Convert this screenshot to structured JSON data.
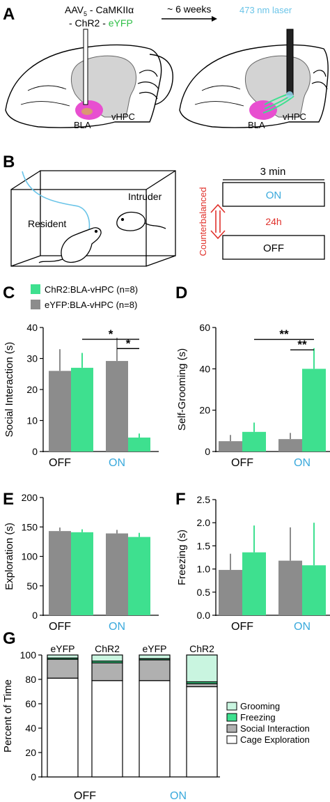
{
  "panel_letters": [
    "A",
    "B",
    "C",
    "D",
    "E",
    "F",
    "G"
  ],
  "colors": {
    "chr2": "#3ee08f",
    "eyfp": "#8c8c8c",
    "laser": "#6ac4e8",
    "on_text": "#3aa9dc",
    "red": "#e0312b",
    "green_text": "#2fbf47",
    "bla_pink": "#e84fd0",
    "brain_gray": "#d3d3d3",
    "grooming": "#c9f5e0",
    "freezing": "#3ee08f",
    "social": "#b0b0b0",
    "cage": "#ffffff"
  },
  "panelA": {
    "virus_line1_pre": "AAV",
    "virus_line1_sub": "5",
    "virus_line1_post": " - CaMKIIα",
    "virus_line2_pre": "- ChR2 - ",
    "virus_line2_green": "eYFP",
    "arrow_label": "~ 6 weeks",
    "laser_label": "473 nm laser",
    "label_bla": "BLA",
    "label_vhpc": "vHPC"
  },
  "panelB": {
    "resident": "Resident",
    "intruder": "Intruder",
    "duration": "3 min",
    "on_label": "ON",
    "off_label": "OFF",
    "counterbalanced": "Counterbalanced",
    "interval": "24h"
  },
  "legend": [
    {
      "name": "ChR2:BLA-vHPC (n=8)",
      "color_key": "chr2"
    },
    {
      "name": "eYFP:BLA-vHPC (n=8)",
      "color_key": "eyfp"
    }
  ],
  "x_categories": [
    "OFF",
    "ON"
  ],
  "chart_data": [
    {
      "panel": "C",
      "type": "bar",
      "ylabel": "Social Interaction (s)",
      "ylim": [
        0,
        40
      ],
      "yticks": [
        0,
        10,
        20,
        30,
        40
      ],
      "categories": [
        "OFF",
        "ON"
      ],
      "series": [
        {
          "name": "eYFP:BLA-vHPC (n=8)",
          "color_key": "eyfp",
          "values": [
            26,
            29.2
          ],
          "errors": [
            7,
            7.5
          ]
        },
        {
          "name": "ChR2:BLA-vHPC (n=8)",
          "color_key": "chr2",
          "values": [
            27,
            4.5
          ],
          "errors": [
            4.8,
            1.3
          ]
        }
      ],
      "significance": [
        {
          "label": "*",
          "y": 36.2,
          "from": [
            0,
            1
          ],
          "to": [
            1,
            1
          ]
        },
        {
          "label": "*",
          "y": 33.2,
          "from": [
            1,
            0
          ],
          "to": [
            1,
            1
          ]
        }
      ]
    },
    {
      "panel": "D",
      "type": "bar",
      "ylabel": "Self-Grooming (s)",
      "ylim": [
        0,
        60
      ],
      "yticks": [
        0,
        20,
        40,
        60
      ],
      "categories": [
        "OFF",
        "ON"
      ],
      "series": [
        {
          "name": "eYFP:BLA-vHPC (n=8)",
          "color_key": "eyfp",
          "values": [
            5,
            6
          ],
          "errors": [
            3,
            3
          ]
        },
        {
          "name": "ChR2:BLA-vHPC (n=8)",
          "color_key": "chr2",
          "values": [
            9.5,
            40
          ],
          "errors": [
            4.5,
            10
          ]
        }
      ],
      "significance": [
        {
          "label": "**",
          "y": 54.2,
          "from": [
            0,
            1
          ],
          "to": [
            1,
            1
          ]
        },
        {
          "label": "**",
          "y": 49.2,
          "from": [
            1,
            0
          ],
          "to": [
            1,
            1
          ]
        }
      ]
    },
    {
      "panel": "E",
      "type": "bar",
      "ylabel": "Exploration (s)",
      "ylim": [
        0,
        200
      ],
      "yticks": [
        0,
        50,
        100,
        150,
        200
      ],
      "categories": [
        "OFF",
        "ON"
      ],
      "series": [
        {
          "name": "eYFP:BLA-vHPC (n=8)",
          "color_key": "eyfp",
          "values": [
            143,
            139
          ],
          "errors": [
            6,
            6
          ]
        },
        {
          "name": "ChR2:BLA-vHPC (n=8)",
          "color_key": "chr2",
          "values": [
            141,
            133
          ],
          "errors": [
            5,
            7
          ]
        }
      ],
      "significance": []
    },
    {
      "panel": "F",
      "type": "bar",
      "ylabel": "Freezing (s)",
      "ylim": [
        0,
        2.5
      ],
      "yticks": [
        0.0,
        0.5,
        1.0,
        1.5,
        2.0,
        2.5
      ],
      "ytick_labels": [
        "0.0",
        "0.5",
        "1.0",
        "1.5",
        "2.0",
        "2.5"
      ],
      "categories": [
        "OFF",
        "ON"
      ],
      "series": [
        {
          "name": "eYFP:BLA-vHPC (n=8)",
          "color_key": "eyfp",
          "values": [
            0.98,
            1.18
          ],
          "errors": [
            0.35,
            0.72
          ]
        },
        {
          "name": "ChR2:BLA-vHPC (n=8)",
          "color_key": "chr2",
          "values": [
            1.36,
            1.08
          ],
          "errors": [
            0.58,
            0.92
          ]
        }
      ],
      "significance": []
    },
    {
      "panel": "G",
      "type": "bar",
      "stacked": true,
      "ylabel": "Percent of Time",
      "ylim": [
        0,
        100
      ],
      "yticks": [
        0,
        20,
        40,
        60,
        80,
        100
      ],
      "categories": [
        "eYFP",
        "ChR2",
        "eYFP",
        "ChR2"
      ],
      "group_labels": [
        "OFF",
        "ON"
      ],
      "series": [
        {
          "name": "Cage Exploration",
          "color_key": "cage",
          "values": [
            81,
            79,
            79,
            74
          ]
        },
        {
          "name": "Social Interaction",
          "color_key": "social",
          "values": [
            15.5,
            14.5,
            17,
            2.5
          ]
        },
        {
          "name": "Freezing",
          "color_key": "freezing",
          "values": [
            1,
            1.5,
            1,
            1.5
          ]
        },
        {
          "name": "Grooming",
          "color_key": "grooming",
          "values": [
            2.5,
            5,
            3,
            22
          ]
        }
      ],
      "legend_order": [
        "Grooming",
        "Freezing",
        "Social Interaction",
        "Cage Exploration"
      ]
    }
  ]
}
